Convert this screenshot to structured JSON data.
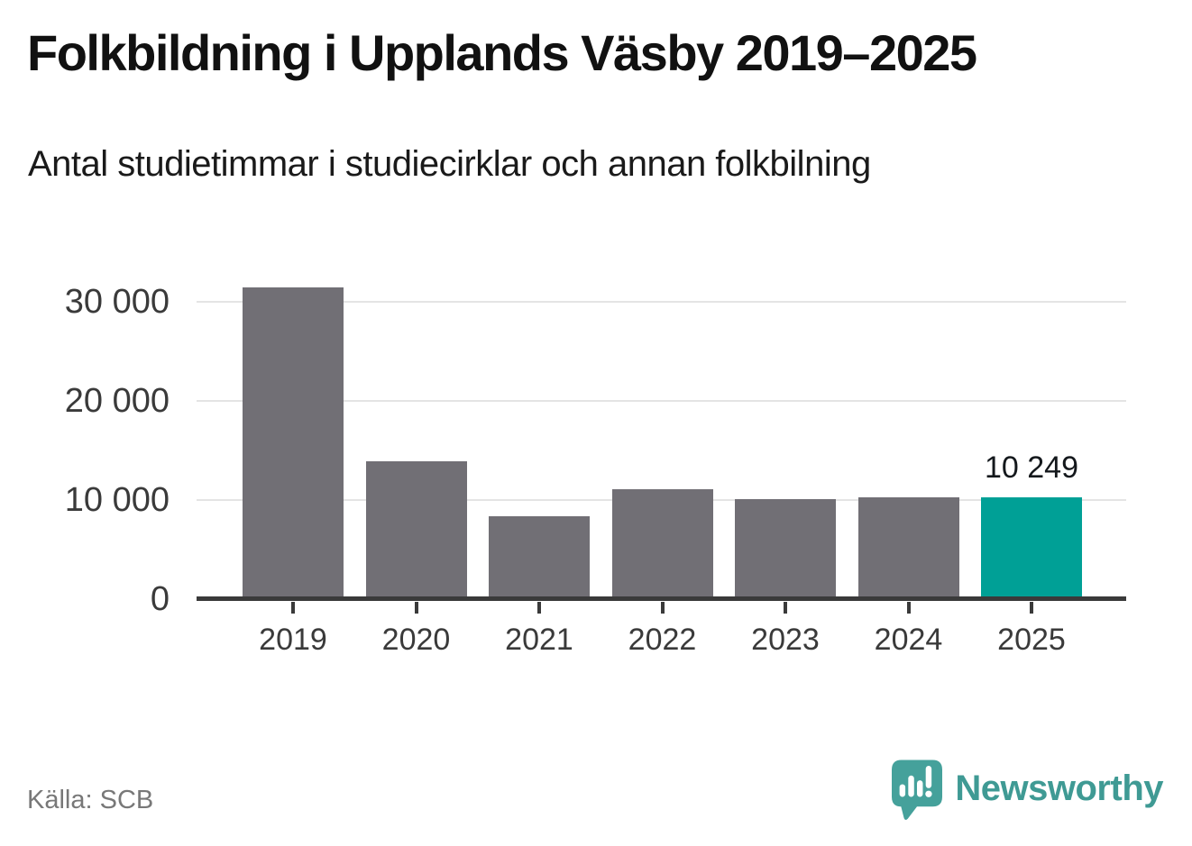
{
  "title": "Folkbildning i Upplands Väsby 2019–2025",
  "subtitle": "Antal studietimmar i studiecirklar och annan folkbilning",
  "source": "Källa: SCB",
  "branding": {
    "name": "Newsworthy"
  },
  "colors": {
    "bar": "#716f75",
    "highlight": "#00a096",
    "brand": "#3f9a94",
    "axis": "#3a3a3a",
    "grid": "#e4e4e4",
    "text": "#14181c",
    "muted": "#787878"
  },
  "chart_data": {
    "type": "bar",
    "categories": [
      "2019",
      "2020",
      "2021",
      "2022",
      "2023",
      "2024",
      "2025"
    ],
    "values": [
      31500,
      13900,
      8400,
      11100,
      10100,
      10250,
      10249
    ],
    "highlight_index": 6,
    "annotations": [
      {
        "index": 6,
        "label": "10 249"
      }
    ],
    "title": "Folkbildning i Upplands Väsby 2019–2025",
    "subtitle": "Antal studietimmar i studiecirklar och annan folkbilning",
    "xlabel": "",
    "ylabel": "",
    "ylim": [
      0,
      33182
    ],
    "yticks": [
      0,
      10000,
      20000,
      30000
    ],
    "ytick_labels": [
      "0",
      "10 000",
      "20 000",
      "30 000"
    ],
    "grid": "horizontal-gridlines-at-yticks",
    "legend": "none"
  }
}
